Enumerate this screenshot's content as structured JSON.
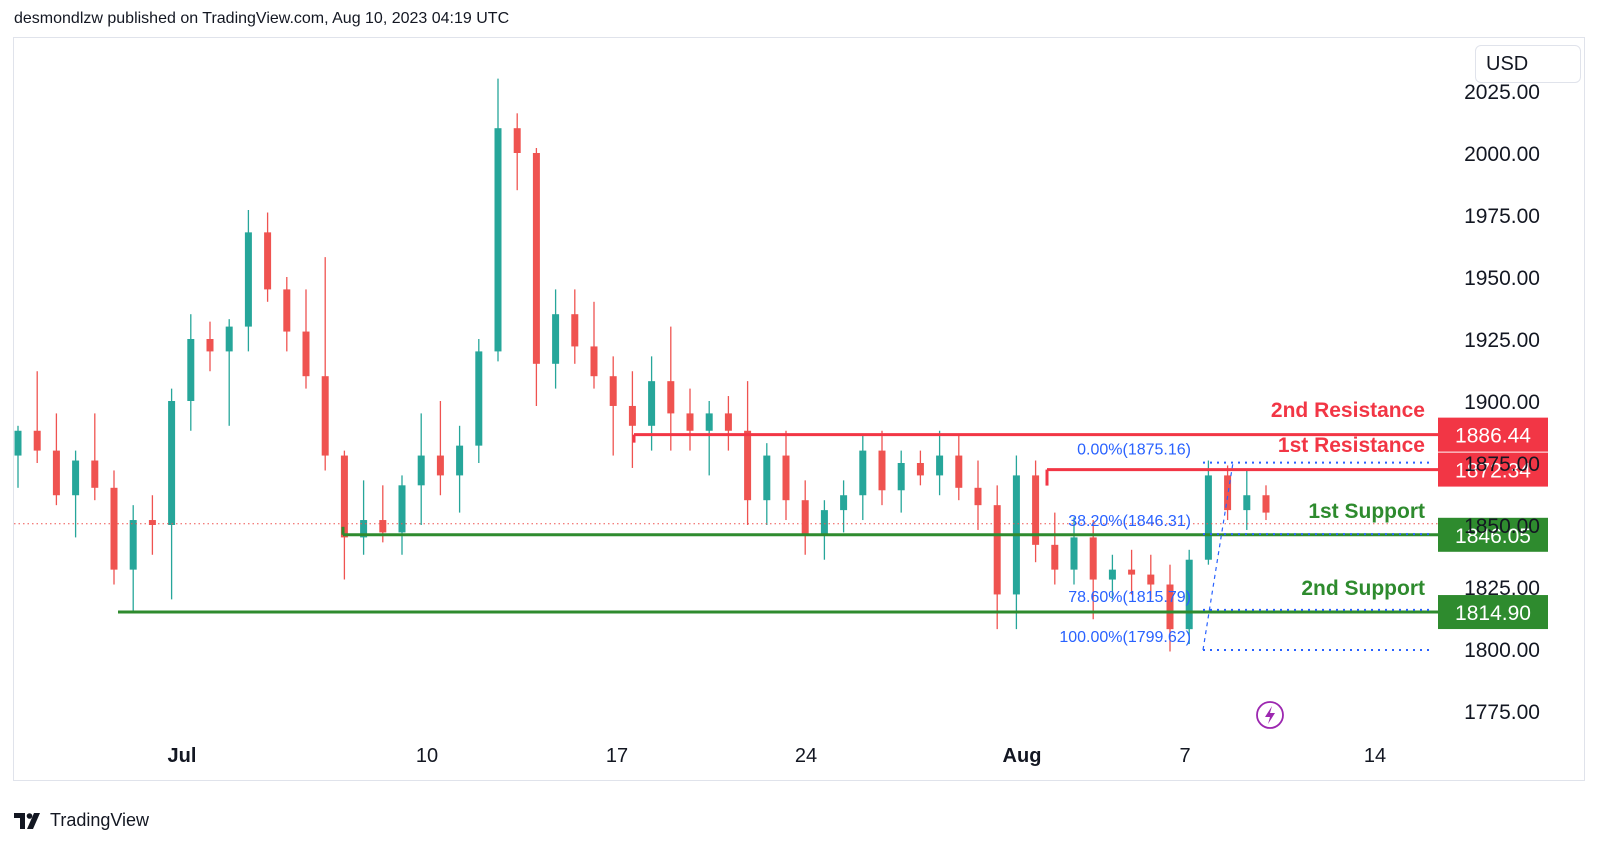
{
  "header": {
    "published": "desmondlzw published on TradingView.com, Aug 10, 2023 04:19 UTC"
  },
  "currency": "USD",
  "footer": {
    "brand": "TradingView"
  },
  "colors": {
    "up": "#26a69a",
    "down": "#ef5350",
    "resistance": "#f23645",
    "support": "#2e8b2e",
    "fib": "#2962ff",
    "price_line": "#ef5350"
  },
  "chart_data": {
    "type": "candlestick",
    "ylim": [
      1760,
      2035
    ],
    "y_ticks": [
      1775,
      1800,
      1825,
      1850,
      1875,
      1900,
      1925,
      1950,
      1975,
      2000,
      2025
    ],
    "y_tick_labels": [
      "1775.00",
      "1800.00",
      "1825.00",
      "1850.00",
      "1875.00",
      "1900.00",
      "1925.00",
      "1950.00",
      "1975.00",
      "2000.00",
      "2025.00"
    ],
    "x_labels": [
      {
        "label": "Jul",
        "bold": true,
        "t": 0
      },
      {
        "label": "10",
        "bold": false,
        "t": 6
      },
      {
        "label": "17",
        "bold": false,
        "t": 11
      },
      {
        "label": "24",
        "bold": false,
        "t": 16
      },
      {
        "label": "Aug",
        "bold": true,
        "t": 22
      },
      {
        "label": "7",
        "bold": false,
        "t": 26
      },
      {
        "label": "14",
        "bold": false,
        "t": 31
      }
    ],
    "resistance": [
      {
        "name": "2nd Resistance",
        "price": 1886.44,
        "label": "1886.44"
      },
      {
        "name": "1st Resistance",
        "price": 1872.34,
        "label": "1872.34"
      }
    ],
    "support": [
      {
        "name": "1st Support",
        "price": 1846.05,
        "label": "1846.05"
      },
      {
        "name": "2nd Support",
        "price": 1814.9,
        "label": "1814.90"
      }
    ],
    "fibonacci": [
      {
        "label": "0.00%(1875.16)",
        "price": 1875.16
      },
      {
        "label": "38.20%(1846.31)",
        "price": 1846.31
      },
      {
        "label": "78.60%(1815.79)",
        "price": 1815.79
      },
      {
        "label": "100.00%(1799.62)",
        "price": 1799.62
      }
    ],
    "current_price": 1850.5,
    "candles": [
      {
        "o": 1878,
        "h": 1890,
        "l": 1865,
        "c": 1888
      },
      {
        "o": 1888,
        "h": 1912,
        "l": 1875,
        "c": 1880
      },
      {
        "o": 1880,
        "h": 1895,
        "l": 1858,
        "c": 1862
      },
      {
        "o": 1862,
        "h": 1880,
        "l": 1845,
        "c": 1876
      },
      {
        "o": 1876,
        "h": 1895,
        "l": 1860,
        "c": 1865
      },
      {
        "o": 1865,
        "h": 1872,
        "l": 1826,
        "c": 1832
      },
      {
        "o": 1832,
        "h": 1858,
        "l": 1815,
        "c": 1852
      },
      {
        "o": 1852,
        "h": 1862,
        "l": 1838,
        "c": 1850
      },
      {
        "o": 1850,
        "h": 1905,
        "l": 1820,
        "c": 1900
      },
      {
        "o": 1900,
        "h": 1935,
        "l": 1888,
        "c": 1925
      },
      {
        "o": 1925,
        "h": 1932,
        "l": 1912,
        "c": 1920
      },
      {
        "o": 1920,
        "h": 1933,
        "l": 1890,
        "c": 1930
      },
      {
        "o": 1930,
        "h": 1977,
        "l": 1920,
        "c": 1968
      },
      {
        "o": 1968,
        "h": 1976,
        "l": 1940,
        "c": 1945
      },
      {
        "o": 1945,
        "h": 1950,
        "l": 1920,
        "c": 1928
      },
      {
        "o": 1928,
        "h": 1945,
        "l": 1905,
        "c": 1910
      },
      {
        "o": 1910,
        "h": 1958,
        "l": 1872,
        "c": 1878
      },
      {
        "o": 1878,
        "h": 1880,
        "l": 1828,
        "c": 1845
      },
      {
        "o": 1845,
        "h": 1868,
        "l": 1838,
        "c": 1852
      },
      {
        "o": 1852,
        "h": 1866,
        "l": 1843,
        "c": 1847
      },
      {
        "o": 1847,
        "h": 1870,
        "l": 1838,
        "c": 1866
      },
      {
        "o": 1866,
        "h": 1895,
        "l": 1850,
        "c": 1878
      },
      {
        "o": 1878,
        "h": 1900,
        "l": 1862,
        "c": 1870
      },
      {
        "o": 1870,
        "h": 1890,
        "l": 1855,
        "c": 1882
      },
      {
        "o": 1882,
        "h": 1925,
        "l": 1875,
        "c": 1920
      },
      {
        "o": 1920,
        "h": 2030,
        "l": 1916,
        "c": 2010
      },
      {
        "o": 2010,
        "h": 2016,
        "l": 1985,
        "c": 2000
      },
      {
        "o": 2000,
        "h": 2002,
        "l": 1898,
        "c": 1915
      },
      {
        "o": 1915,
        "h": 1945,
        "l": 1905,
        "c": 1935
      },
      {
        "o": 1935,
        "h": 1945,
        "l": 1915,
        "c": 1922
      },
      {
        "o": 1922,
        "h": 1940,
        "l": 1905,
        "c": 1910
      },
      {
        "o": 1910,
        "h": 1918,
        "l": 1878,
        "c": 1898
      },
      {
        "o": 1898,
        "h": 1912,
        "l": 1873,
        "c": 1890
      },
      {
        "o": 1890,
        "h": 1918,
        "l": 1880,
        "c": 1908
      },
      {
        "o": 1908,
        "h": 1930,
        "l": 1880,
        "c": 1895
      },
      {
        "o": 1895,
        "h": 1905,
        "l": 1880,
        "c": 1888
      },
      {
        "o": 1888,
        "h": 1900,
        "l": 1870,
        "c": 1895
      },
      {
        "o": 1895,
        "h": 1902,
        "l": 1880,
        "c": 1888
      },
      {
        "o": 1888,
        "h": 1908,
        "l": 1850,
        "c": 1860
      },
      {
        "o": 1860,
        "h": 1883,
        "l": 1850,
        "c": 1878
      },
      {
        "o": 1878,
        "h": 1888,
        "l": 1852,
        "c": 1860
      },
      {
        "o": 1860,
        "h": 1868,
        "l": 1838,
        "c": 1846
      },
      {
        "o": 1846,
        "h": 1860,
        "l": 1836,
        "c": 1856
      },
      {
        "o": 1856,
        "h": 1868,
        "l": 1847,
        "c": 1862
      },
      {
        "o": 1862,
        "h": 1886,
        "l": 1852,
        "c": 1880
      },
      {
        "o": 1880,
        "h": 1888,
        "l": 1858,
        "c": 1864
      },
      {
        "o": 1864,
        "h": 1880,
        "l": 1855,
        "c": 1875
      },
      {
        "o": 1875,
        "h": 1880,
        "l": 1866,
        "c": 1870
      },
      {
        "o": 1870,
        "h": 1888,
        "l": 1862,
        "c": 1878
      },
      {
        "o": 1878,
        "h": 1886,
        "l": 1860,
        "c": 1865
      },
      {
        "o": 1865,
        "h": 1876,
        "l": 1848,
        "c": 1858
      },
      {
        "o": 1858,
        "h": 1866,
        "l": 1808,
        "c": 1822
      },
      {
        "o": 1822,
        "h": 1878,
        "l": 1808,
        "c": 1870
      },
      {
        "o": 1870,
        "h": 1876,
        "l": 1835,
        "c": 1842
      },
      {
        "o": 1842,
        "h": 1855,
        "l": 1826,
        "c": 1832
      },
      {
        "o": 1832,
        "h": 1853,
        "l": 1826,
        "c": 1845
      },
      {
        "o": 1845,
        "h": 1852,
        "l": 1812,
        "c": 1828
      },
      {
        "o": 1828,
        "h": 1838,
        "l": 1820,
        "c": 1832
      },
      {
        "o": 1832,
        "h": 1840,
        "l": 1822,
        "c": 1830
      },
      {
        "o": 1830,
        "h": 1838,
        "l": 1820,
        "c": 1826
      },
      {
        "o": 1826,
        "h": 1834,
        "l": 1799,
        "c": 1808
      },
      {
        "o": 1808,
        "h": 1840,
        "l": 1802,
        "c": 1836
      },
      {
        "o": 1836,
        "h": 1876,
        "l": 1834,
        "c": 1870
      },
      {
        "o": 1870,
        "h": 1874,
        "l": 1852,
        "c": 1856
      },
      {
        "o": 1856,
        "h": 1872,
        "l": 1848,
        "c": 1862
      },
      {
        "o": 1862,
        "h": 1866,
        "l": 1852,
        "c": 1855
      }
    ]
  }
}
